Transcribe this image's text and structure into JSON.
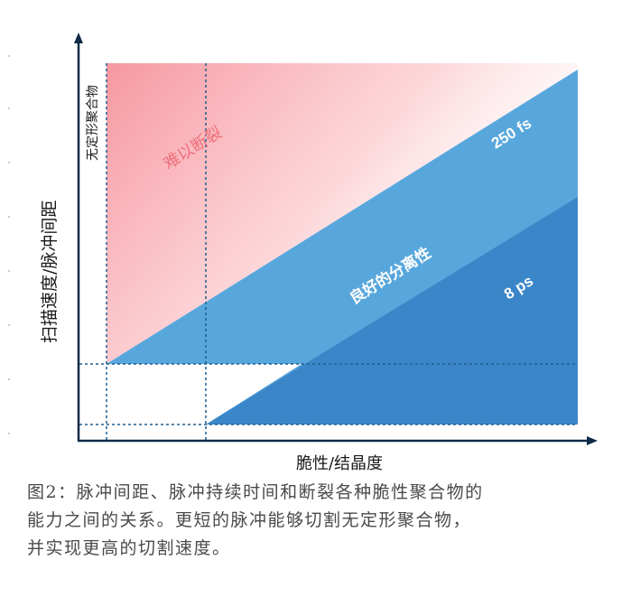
{
  "diagram": {
    "y_axis_label": "扫描速度/脉冲间距",
    "x_axis_label": "脆性/结晶度",
    "amorphous_label": "无定形聚合物",
    "hard_to_break_label": "难以断裂",
    "good_separation_label": "良好的分离性",
    "fs_label": "250 fs",
    "ps_label": "8 ps",
    "colors": {
      "axis": "#0e2a47",
      "fs_region": "#58a7dc",
      "ps_region": "#3b86c8",
      "hard_region": "#f7a1a7",
      "hard_text": "#ef6f7a",
      "guide": "#1f5f92"
    }
  },
  "caption": {
    "line1": "图2：脉冲间距、脉冲持续时间和断裂各种脆性聚合物的",
    "line2": "能力之间的关系。更短的脉冲能够切割无定形聚合物，",
    "line3": "并实现更高的切割速度。"
  }
}
